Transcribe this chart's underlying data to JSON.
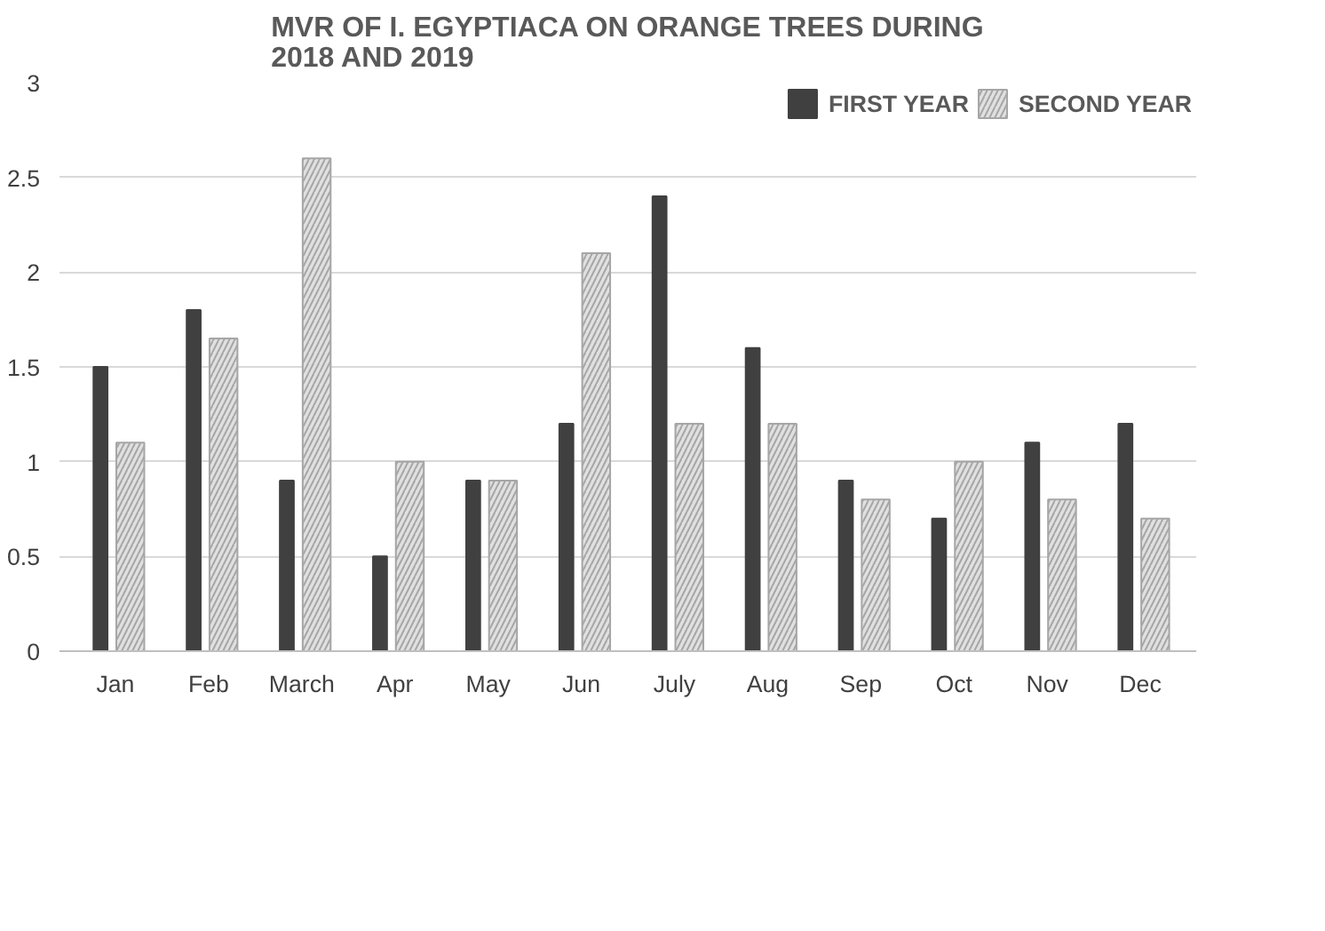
{
  "chart_data": {
    "type": "bar",
    "title": "MVR OF I. EGYPTIACA ON ORANGE TREES DURING 2018 AND 2019",
    "categories": [
      "Jan",
      "Feb",
      "March",
      "Apr",
      "May",
      "Jun",
      "July",
      "Aug",
      "Sep",
      "Oct",
      "Nov",
      "Dec"
    ],
    "series": [
      {
        "name": "FIRST YEAR",
        "color": "#404040",
        "values": [
          1.5,
          1.8,
          0.9,
          0.5,
          0.9,
          1.2,
          2.4,
          1.6,
          0.9,
          0.7,
          1.1,
          1.2
        ]
      },
      {
        "name": "SECOND YEAR",
        "color": "#e0e0e0",
        "values": [
          1.1,
          1.65,
          2.6,
          1.0,
          0.9,
          2.1,
          1.2,
          1.2,
          0.8,
          1.0,
          0.8,
          0.7
        ]
      }
    ],
    "ylim": [
      0,
      3
    ],
    "yticks": [
      0,
      0.5,
      1,
      1.5,
      2,
      2.5,
      3
    ],
    "grid": "y",
    "legend": "top right"
  }
}
